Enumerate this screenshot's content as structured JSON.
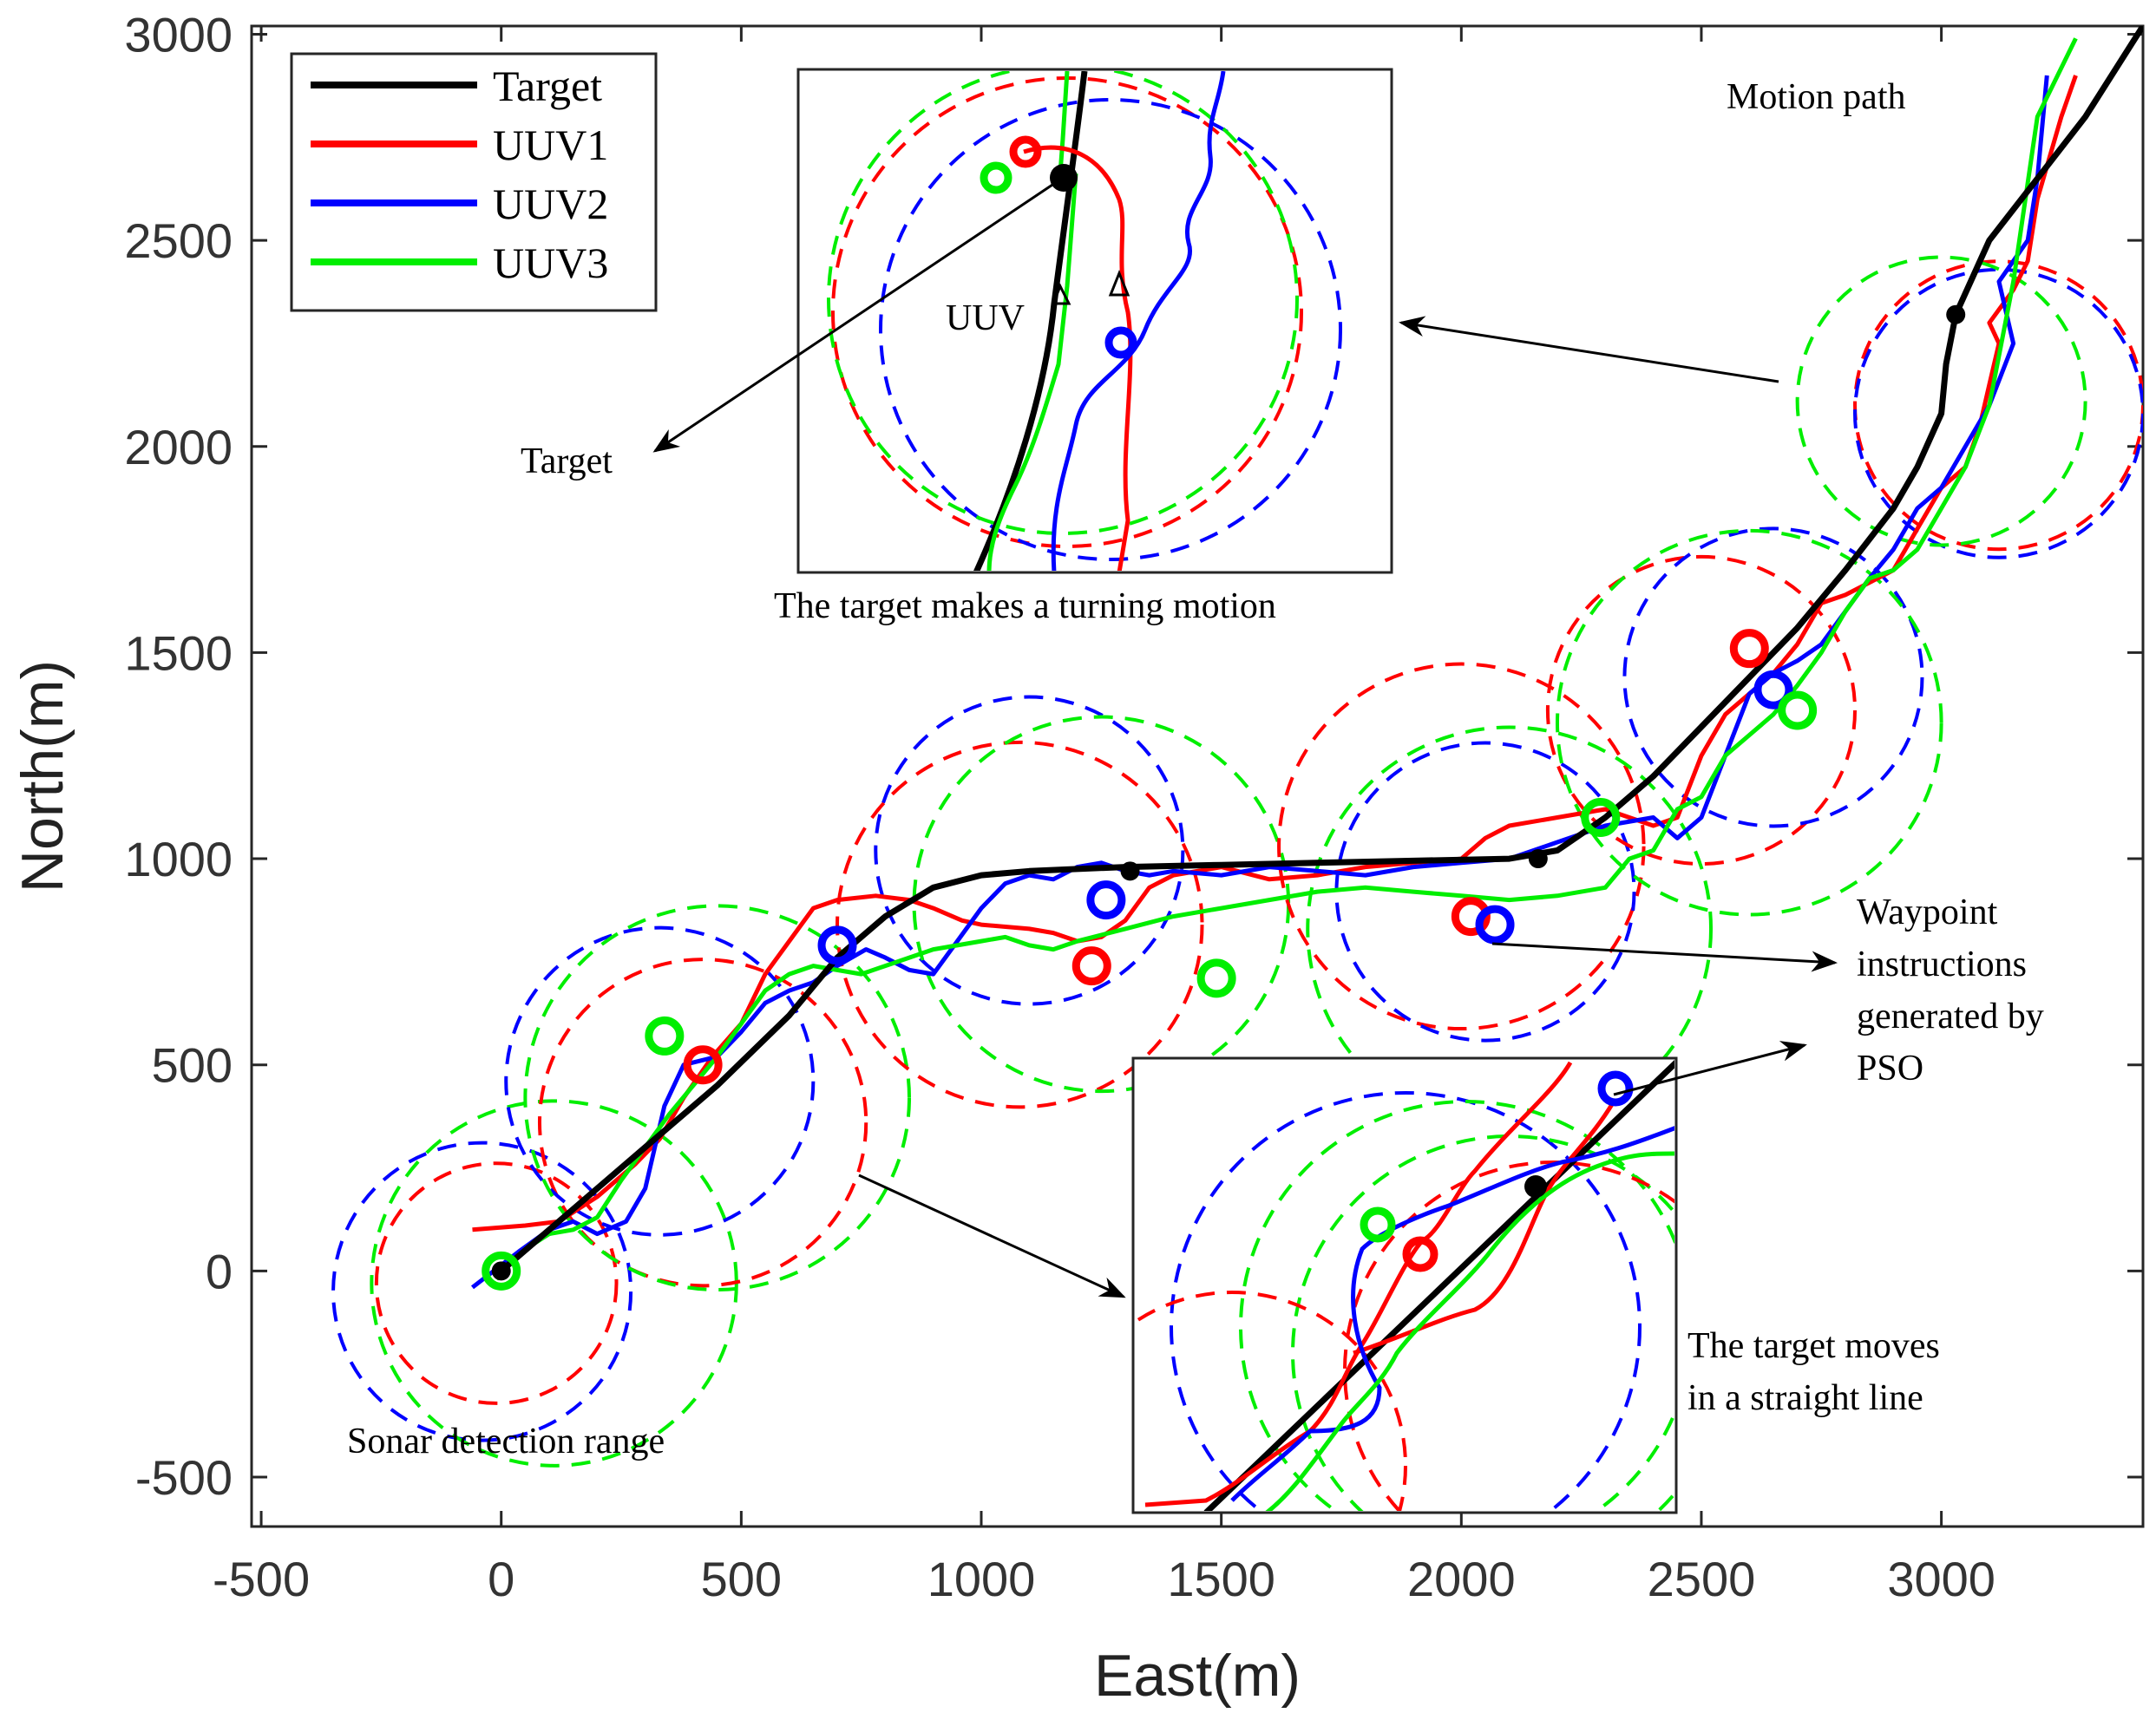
{
  "chart_data": {
    "type": "line",
    "title": "",
    "xlabel": "East(m)",
    "ylabel": "North(m)",
    "xlim": [
      -520,
      3420
    ],
    "ylim": [
      -620,
      3020
    ],
    "xticks": [
      -500,
      0,
      500,
      1000,
      1500,
      2000,
      2500,
      3000
    ],
    "yticks": [
      -500,
      0,
      500,
      1000,
      1500,
      2000,
      2500,
      3000
    ],
    "legend": {
      "placement": "top-left",
      "entries": [
        {
          "name": "Target",
          "color": "#000000"
        },
        {
          "name": "UUV1",
          "color": "#ff0000"
        },
        {
          "name": "UUV2",
          "color": "#0000ff"
        },
        {
          "name": "UUV3",
          "color": "#00ee00"
        }
      ]
    },
    "series": [
      {
        "name": "Target",
        "color": "#000000",
        "x": [
          0,
          150,
          300,
          450,
          600,
          700,
          800,
          900,
          1000,
          1100,
          1200,
          1300,
          1500,
          1700,
          1900,
          2100,
          2200,
          2300,
          2400,
          2500,
          2600,
          2700,
          2800,
          2900,
          2950,
          3000,
          3010,
          3030,
          3100,
          3200,
          3300,
          3420
        ],
        "y": [
          0,
          150,
          300,
          450,
          620,
          760,
          860,
          930,
          960,
          970,
          975,
          980,
          985,
          990,
          995,
          1000,
          1020,
          1100,
          1200,
          1320,
          1440,
          1560,
          1700,
          1850,
          1950,
          2080,
          2200,
          2320,
          2500,
          2650,
          2800,
          3020
        ]
      },
      {
        "name": "UUV1",
        "color": "#ff0000",
        "x": [
          -60,
          50,
          120,
          200,
          280,
          330,
          380,
          440,
          500,
          550,
          600,
          650,
          700,
          780,
          850,
          900,
          960,
          1000,
          1100,
          1150,
          1200,
          1250,
          1300,
          1350,
          1400,
          1500,
          1600,
          1700,
          1800,
          1900,
          2000,
          2050,
          2100,
          2200,
          2300,
          2400,
          2450,
          2500,
          2550,
          2600,
          2650,
          2700,
          2750,
          2800,
          2900,
          2950,
          3000,
          3050,
          3080,
          3100,
          3120,
          3100,
          3150,
          3180,
          3200,
          3250,
          3280
        ],
        "y": [
          100,
          110,
          120,
          180,
          260,
          320,
          420,
          520,
          600,
          720,
          800,
          880,
          900,
          910,
          900,
          880,
          850,
          840,
          830,
          820,
          800,
          810,
          850,
          930,
          960,
          980,
          950,
          960,
          980,
          990,
          1000,
          1050,
          1080,
          1100,
          1120,
          1080,
          1100,
          1250,
          1350,
          1400,
          1450,
          1520,
          1620,
          1640,
          1700,
          1800,
          1900,
          1950,
          2050,
          2150,
          2250,
          2300,
          2380,
          2450,
          2600,
          2800,
          2900
        ]
      },
      {
        "name": "UUV2",
        "color": "#0000ff",
        "x": [
          -60,
          40,
          100,
          150,
          200,
          260,
          300,
          340,
          380,
          450,
          500,
          550,
          600,
          650,
          700,
          760,
          800,
          850,
          900,
          950,
          1000,
          1050,
          1100,
          1150,
          1200,
          1250,
          1300,
          1350,
          1400,
          1500,
          1600,
          1700,
          1800,
          1900,
          2000,
          2100,
          2200,
          2300,
          2400,
          2450,
          2500,
          2550,
          2600,
          2650,
          2700,
          2750,
          2800,
          2850,
          2900,
          2950,
          3000,
          3050,
          3100,
          3150,
          3120,
          3180,
          3200,
          3220
        ],
        "y": [
          -40,
          50,
          100,
          120,
          90,
          120,
          200,
          400,
          500,
          520,
          580,
          650,
          680,
          700,
          740,
          780,
          760,
          730,
          720,
          800,
          880,
          940,
          960,
          950,
          980,
          990,
          970,
          960,
          970,
          960,
          980,
          970,
          960,
          980,
          990,
          1000,
          1040,
          1080,
          1100,
          1050,
          1100,
          1250,
          1400,
          1450,
          1480,
          1520,
          1600,
          1680,
          1750,
          1850,
          1900,
          2000,
          2100,
          2250,
          2400,
          2500,
          2650,
          2900
        ]
      },
      {
        "name": "UUV3",
        "color": "#00ee00",
        "x": [
          -10,
          20,
          60,
          100,
          150,
          200,
          250,
          300,
          350,
          400,
          450,
          500,
          550,
          600,
          650,
          700,
          750,
          800,
          850,
          900,
          950,
          1000,
          1050,
          1100,
          1150,
          1200,
          1300,
          1400,
          1500,
          1600,
          1700,
          1800,
          1900,
          2000,
          2100,
          2200,
          2300,
          2350,
          2400,
          2450,
          2500,
          2550,
          2600,
          2650,
          2700,
          2750,
          2800,
          2850,
          2900,
          2950,
          3000,
          3050,
          3100,
          3150,
          3200,
          3280
        ],
        "y": [
          -20,
          20,
          60,
          90,
          100,
          130,
          220,
          300,
          380,
          450,
          520,
          600,
          680,
          720,
          740,
          730,
          720,
          740,
          760,
          780,
          790,
          800,
          810,
          790,
          780,
          800,
          830,
          860,
          880,
          900,
          920,
          930,
          920,
          910,
          900,
          910,
          930,
          1000,
          1020,
          1120,
          1150,
          1250,
          1300,
          1350,
          1420,
          1500,
          1600,
          1680,
          1700,
          1750,
          1850,
          1950,
          2100,
          2400,
          2800,
          2990
        ]
      }
    ],
    "waypoints": [
      {
        "series": "UUV1",
        "x": 420,
        "y": 500
      },
      {
        "series": "UUV1",
        "x": 1230,
        "y": 740
      },
      {
        "series": "UUV1",
        "x": 2020,
        "y": 860
      },
      {
        "series": "UUV1",
        "x": 2600,
        "y": 1510
      },
      {
        "series": "UUV2",
        "x": 700,
        "y": 790
      },
      {
        "series": "UUV2",
        "x": 1260,
        "y": 900
      },
      {
        "series": "UUV2",
        "x": 2070,
        "y": 840
      },
      {
        "series": "UUV2",
        "x": 2650,
        "y": 1410
      },
      {
        "series": "UUV3",
        "x": 0,
        "y": 0
      },
      {
        "series": "UUV3",
        "x": 340,
        "y": 570
      },
      {
        "series": "UUV3",
        "x": 1490,
        "y": 710
      },
      {
        "series": "UUV3",
        "x": 2290,
        "y": 1100
      },
      {
        "series": "UUV3",
        "x": 2700,
        "y": 1360
      }
    ],
    "target_points": [
      {
        "x": 0,
        "y": 0
      },
      {
        "x": 1310,
        "y": 970
      },
      {
        "x": 2160,
        "y": 1000
      },
      {
        "x": 3030,
        "y": 2320
      }
    ],
    "sonar_ranges": [
      {
        "series": "UUV1",
        "cx": -10,
        "cy": -30,
        "r": 250
      },
      {
        "series": "UUV2",
        "cx": -40,
        "cy": -50,
        "r": 310
      },
      {
        "series": "UUV3",
        "cx": 110,
        "cy": -30,
        "r": 380
      },
      {
        "series": "UUV1",
        "cx": 420,
        "cy": 360,
        "r": 340
      },
      {
        "series": "UUV2",
        "cx": 330,
        "cy": 460,
        "r": 320
      },
      {
        "series": "UUV3",
        "cx": 450,
        "cy": 420,
        "r": 400
      },
      {
        "series": "UUV1",
        "cx": 1080,
        "cy": 840,
        "r": 380
      },
      {
        "series": "UUV2",
        "cx": 1100,
        "cy": 1020,
        "r": 320
      },
      {
        "series": "UUV3",
        "cx": 1250,
        "cy": 890,
        "r": 390
      },
      {
        "series": "UUV1",
        "cx": 2000,
        "cy": 1030,
        "r": 380
      },
      {
        "series": "UUV2",
        "cx": 2050,
        "cy": 920,
        "r": 310
      },
      {
        "series": "UUV3",
        "cx": 2100,
        "cy": 830,
        "r": 420
      },
      {
        "series": "UUV1",
        "cx": 2500,
        "cy": 1360,
        "r": 320
      },
      {
        "series": "UUV2",
        "cx": 2650,
        "cy": 1440,
        "r": 310
      },
      {
        "series": "UUV3",
        "cx": 2600,
        "cy": 1330,
        "r": 400
      },
      {
        "series": "UUV1",
        "cx": 3120,
        "cy": 2100,
        "r": 300
      },
      {
        "series": "UUV2",
        "cx": 3120,
        "cy": 2080,
        "r": 300
      },
      {
        "series": "UUV3",
        "cx": 3000,
        "cy": 2110,
        "r": 300
      }
    ],
    "annotations": [
      "Motion path",
      "Target",
      "UUV",
      "The target makes a turning motion",
      "Waypoint",
      "instructions",
      "generated by",
      "PSO",
      "The target moves",
      "in a straight line",
      "Sonar detection range"
    ]
  }
}
